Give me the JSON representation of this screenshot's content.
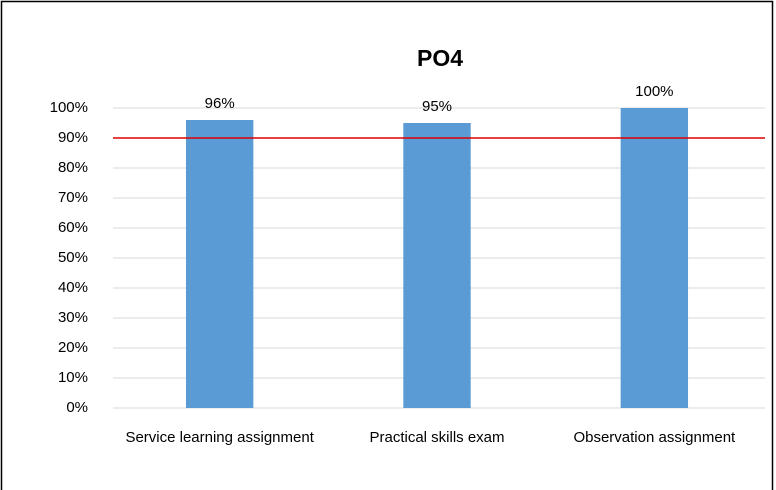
{
  "chart_data": {
    "type": "bar",
    "title": "PO4",
    "categories": [
      "Service learning assignment",
      "Practical skills exam",
      "Observation assignment"
    ],
    "values": [
      96,
      95,
      100
    ],
    "value_labels": [
      "96%",
      "95%",
      "100%"
    ],
    "color": "#5b9bd5",
    "ylim": [
      0,
      100
    ],
    "yticks": [
      {
        "value": 0,
        "label": "0%"
      },
      {
        "value": 10,
        "label": "10%"
      },
      {
        "value": 20,
        "label": "20%"
      },
      {
        "value": 30,
        "label": "30%"
      },
      {
        "value": 40,
        "label": "40%"
      },
      {
        "value": 50,
        "label": "50%"
      },
      {
        "value": 60,
        "label": "60%"
      },
      {
        "value": 70,
        "label": "70%"
      },
      {
        "value": 80,
        "label": "80%"
      },
      {
        "value": 90,
        "label": "90%"
      },
      {
        "value": 100,
        "label": "100%"
      }
    ],
    "grid": true,
    "reference_line": {
      "value": 90,
      "color": "#e00000"
    }
  }
}
